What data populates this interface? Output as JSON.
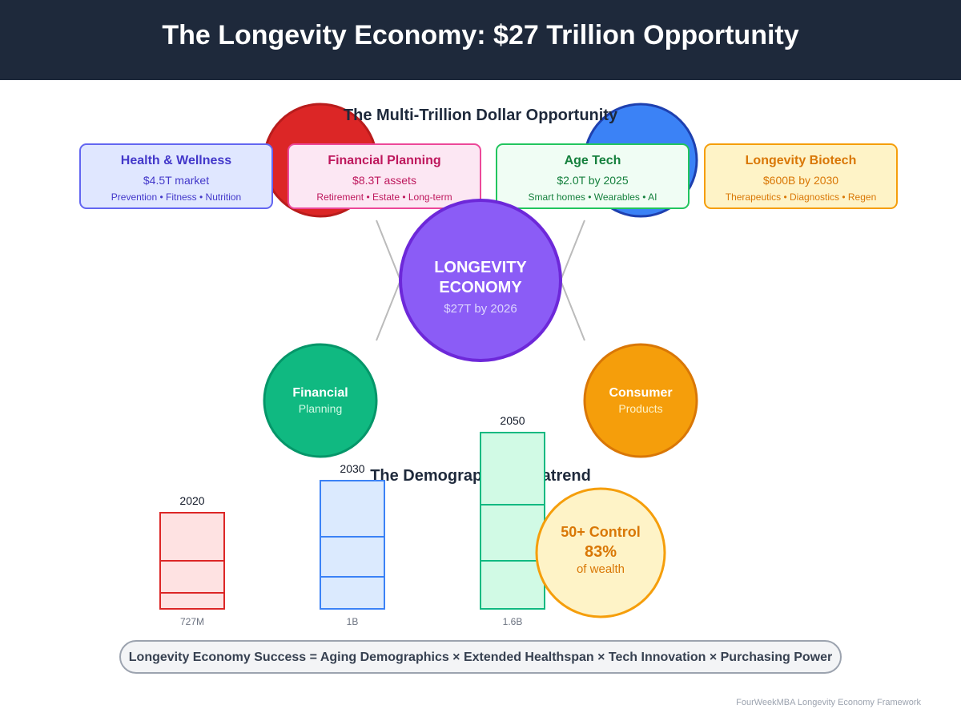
{
  "header": {
    "title": "The Longevity Economy: $27 Trillion Opportunity"
  },
  "opportunity": {
    "title": "The Multi-Trillion Dollar Opportunity",
    "cards": [
      {
        "title": "Health & Wellness",
        "value": "$4.5T market",
        "tags": "Prevention • Fitness • Nutrition"
      },
      {
        "title": "Financial Planning",
        "value": "$8.3T assets",
        "tags": "Retirement • Estate • Long-term"
      },
      {
        "title": "Age Tech",
        "value": "$2.0T by 2025",
        "tags": "Smart homes • Wearables • AI"
      },
      {
        "title": "Longevity Biotech",
        "value": "$600B by 2030",
        "tags": "Therapeutics • Diagnostics • Regen"
      }
    ],
    "center": {
      "line1": "LONGEVITY",
      "line2": "ECONOMY",
      "value": "$27T by 2026"
    },
    "satellites": [
      {
        "title": "Financial",
        "subtitle": "Planning"
      },
      {
        "title": "Consumer",
        "subtitle": "Products"
      }
    ]
  },
  "demographics": {
    "title": "The Demographic Megatrend",
    "bars": [
      {
        "year": "2020",
        "label": "727M"
      },
      {
        "year": "2030",
        "label": "1B"
      },
      {
        "year": "2050",
        "label": "1.6B"
      }
    ],
    "wealth": {
      "title": "50+ Control",
      "value": "83%",
      "subtitle": "of wealth"
    }
  },
  "formula": "Longevity Economy Success = Aging Demographics × Extended Healthspan × Tech Innovation × Purchasing Power",
  "footer": "FourWeekMBA Longevity Economy Framework"
}
